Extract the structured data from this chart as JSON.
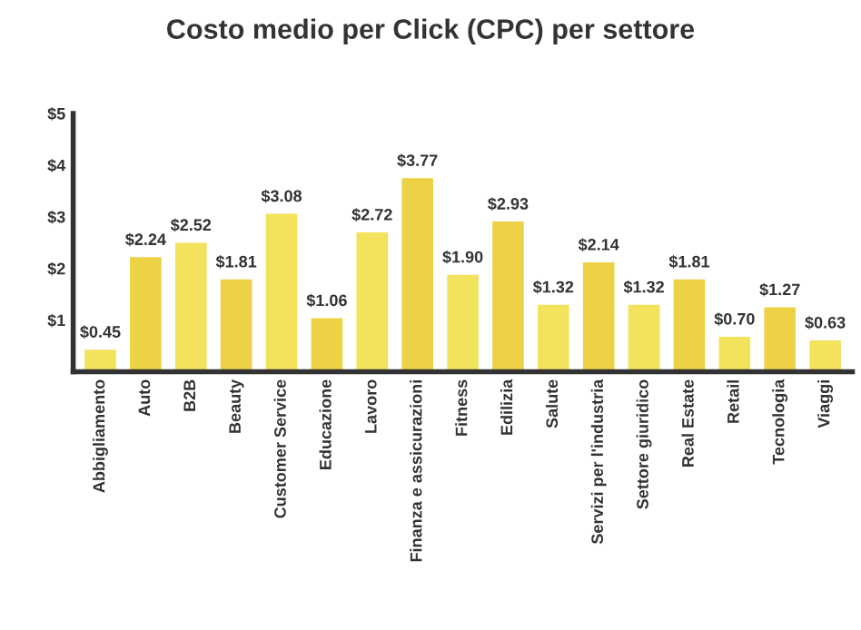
{
  "chart_data": {
    "type": "bar",
    "title": "Costo medio per Click (CPC) per settore",
    "categories": [
      "Abbigliamento",
      "Auto",
      "B2B",
      "Beauty",
      "Customer Service",
      "Educazione",
      "Lavoro",
      "Finanza e assicurazioni",
      "Fitness",
      "Edilizia",
      "Salute",
      "Servizi per l'industria",
      "Settore giuridico",
      "Real Estate",
      "Retail",
      "Tecnologia",
      "Viaggi"
    ],
    "values": [
      0.45,
      2.24,
      2.52,
      1.81,
      3.08,
      1.06,
      2.72,
      3.77,
      1.9,
      2.93,
      1.32,
      2.14,
      1.32,
      1.81,
      0.7,
      1.27,
      0.63
    ],
    "value_labels": [
      "$0.45",
      "$2.24",
      "$2.52",
      "$1.81",
      "$3.08",
      "$1.06",
      "$2.72",
      "$3.77",
      "$1.90",
      "$2.93",
      "$1.32",
      "$2.14",
      "$1.32",
      "$1.81",
      "$0.70",
      "$1.27",
      "$0.63"
    ],
    "colors": [
      "#f3e25c",
      "#edd245",
      "#f3e25c",
      "#edd245",
      "#f3e25c",
      "#edd245",
      "#f3e25c",
      "#edd245",
      "#f3e25c",
      "#edd245",
      "#f3e25c",
      "#edd245",
      "#f3e25c",
      "#edd245",
      "#f3e25c",
      "#edd245",
      "#f3e25c"
    ],
    "ylim": [
      0,
      5
    ],
    "yticks": [
      {
        "value": 1,
        "label": "$1"
      },
      {
        "value": 2,
        "label": "$2"
      },
      {
        "value": 3,
        "label": "$3"
      },
      {
        "value": 4,
        "label": "$4"
      },
      {
        "value": 5,
        "label": "$5"
      }
    ],
    "grid": false,
    "legend": false
  }
}
